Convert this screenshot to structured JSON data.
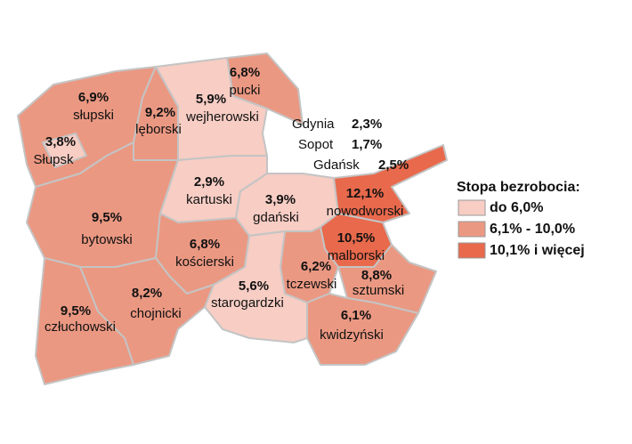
{
  "chart_data": {
    "type": "choropleth",
    "regions": {
      "names": [
        "pucki",
        "wejherowski",
        "słupski",
        "Słupsk",
        "lęborski",
        "bytowski",
        "kartuski",
        "gdański",
        "kościerski",
        "nowodworski",
        "malborski",
        "tczewski",
        "sztumski",
        "kwidzyński",
        "starogardzki",
        "chojnicki",
        "człuchowski"
      ],
      "values": [
        6.8,
        5.9,
        6.9,
        3.8,
        9.2,
        9.5,
        2.9,
        3.9,
        6.8,
        12.1,
        10.5,
        6.2,
        8.8,
        6.1,
        5.6,
        8.2,
        9.5
      ],
      "value_labels": [
        "6,8%",
        "5,9%",
        "6,9%",
        "3,8%",
        "9,2%",
        "9,5%",
        "2,9%",
        "3,9%",
        "6,8%",
        "12,1%",
        "10,5%",
        "6,2%",
        "8,8%",
        "6,1%",
        "5,6%",
        "8,2%",
        "9,5%"
      ]
    },
    "cities": {
      "names": [
        "Gdynia",
        "Sopot",
        "Gdańsk"
      ],
      "values": [
        2.3,
        1.7,
        2.5
      ],
      "value_labels": [
        "2,3%",
        "1,7%",
        "2,5%"
      ]
    },
    "legend": {
      "title": "Stopa bezrobocia:",
      "classes": [
        {
          "label": "do 6,0%",
          "to": 6.0,
          "color": "#f7cdc4"
        },
        {
          "label": "6,1% - 10,0%",
          "from": 6.1,
          "to": 10.0,
          "color": "#eb9882"
        },
        {
          "label": "10,1% i więcej",
          "from": 10.1,
          "color": "#e8694c"
        }
      ]
    }
  }
}
